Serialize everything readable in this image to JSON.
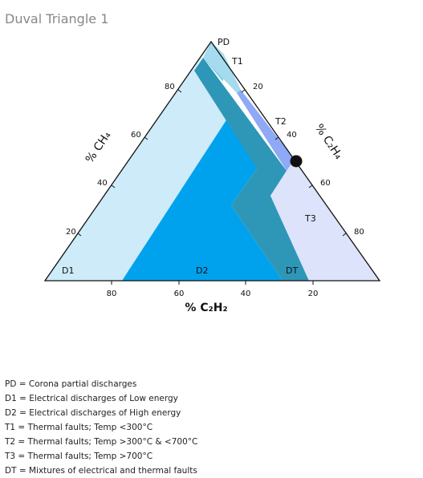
{
  "title": "Duval Triangle 1",
  "colors": {
    "PD": "#7FD0E8",
    "T1": "#A6DBEF",
    "T2": "#8EA9F5",
    "T3": "#DCE3FA",
    "D1": "#CDEBF9",
    "D2": "#00A2ED",
    "DT": "#2E97B8",
    "outline": "#111111"
  },
  "zones": {
    "PD": "PD",
    "T1": "T1",
    "T2": "T2",
    "T3": "T3",
    "D1": "D1",
    "D2": "D2",
    "DT": "DT"
  },
  "axes": {
    "left": {
      "label": "% CH₄",
      "ticks": [
        "20",
        "40",
        "60",
        "80"
      ]
    },
    "right": {
      "label": "% C₂H₄",
      "ticks": [
        "20",
        "40",
        "60",
        "80"
      ]
    },
    "bottom": {
      "label": "% C₂H₂",
      "ticks": [
        "80",
        "60",
        "40",
        "20"
      ]
    }
  },
  "point_marker": "measured-sample-point",
  "legend": [
    "PD = Corona partial discharges",
    "D1 = Electrical discharges of Low energy",
    "D2 = Electrical discharges of High energy",
    "T1 = Thermal faults; Temp <300°C",
    "T2 = Thermal faults; Temp >300°C & <700°C",
    "T3 = Thermal faults; Temp >700°C",
    "DT = Mixtures of electrical and thermal faults"
  ]
}
